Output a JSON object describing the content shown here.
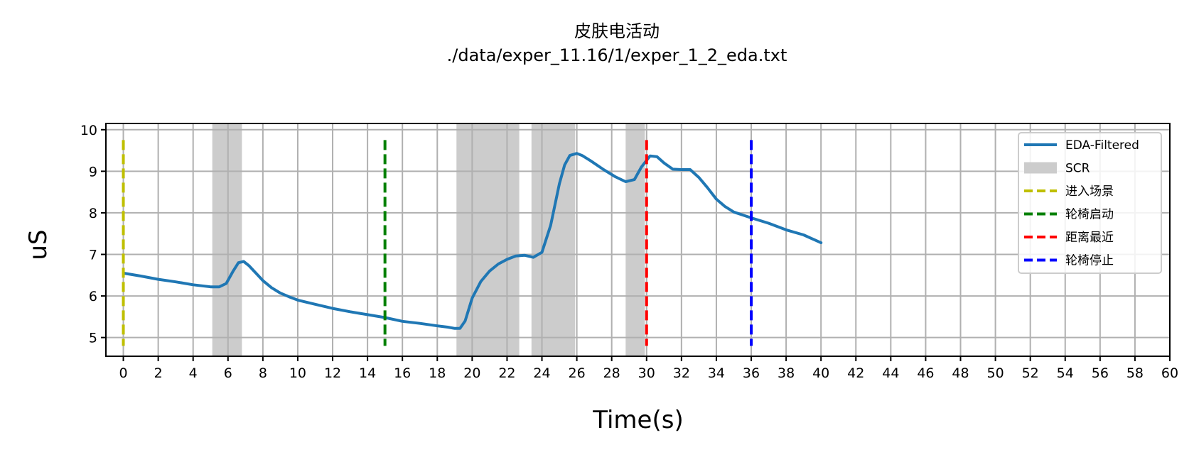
{
  "chart_data": {
    "type": "line",
    "title": "皮肤电活动",
    "subtitle": "./data/exper_11.16/1/exper_1_2_eda.txt",
    "xlabel": "Time(s)",
    "ylabel": "uS",
    "xlim": [
      -1,
      60
    ],
    "ylim": [
      4.55,
      10.15
    ],
    "xticks": [
      0,
      2,
      4,
      6,
      8,
      10,
      12,
      14,
      16,
      18,
      20,
      22,
      24,
      26,
      28,
      30,
      32,
      34,
      36,
      38,
      40,
      42,
      44,
      46,
      48,
      50,
      52,
      54,
      56,
      58,
      60
    ],
    "yticks": [
      5,
      6,
      7,
      8,
      9,
      10
    ],
    "grid": true,
    "legend_position": "top-right",
    "series": [
      {
        "name": "EDA-Filtered",
        "color": "#1f77b4",
        "x": [
          0,
          1,
          2,
          3,
          4,
          5,
          5.5,
          5.9,
          6.3,
          6.6,
          6.9,
          7.2,
          7.6,
          8,
          8.5,
          9,
          9.5,
          10,
          11,
          12,
          13,
          14,
          15,
          16,
          17,
          18,
          18.6,
          19,
          19.3,
          19.6,
          20,
          20.5,
          21,
          21.5,
          22,
          22.5,
          23,
          23.5,
          24,
          24.5,
          25,
          25.3,
          25.6,
          26,
          26.3,
          26.8,
          27.5,
          28.2,
          28.8,
          29.3,
          29.7,
          30.2,
          30.6,
          31,
          31.5,
          32,
          32.5,
          33,
          33.5,
          34,
          34.5,
          35,
          35.5,
          36,
          37,
          38,
          39,
          40
        ],
        "y": [
          6.55,
          6.48,
          6.4,
          6.34,
          6.27,
          6.22,
          6.22,
          6.3,
          6.6,
          6.8,
          6.83,
          6.73,
          6.55,
          6.37,
          6.2,
          6.07,
          5.98,
          5.9,
          5.8,
          5.7,
          5.62,
          5.55,
          5.48,
          5.39,
          5.34,
          5.28,
          5.25,
          5.22,
          5.22,
          5.4,
          5.95,
          6.35,
          6.6,
          6.77,
          6.88,
          6.96,
          6.98,
          6.93,
          7.05,
          7.7,
          8.7,
          9.15,
          9.38,
          9.43,
          9.38,
          9.25,
          9.05,
          8.87,
          8.75,
          8.8,
          9.1,
          9.37,
          9.35,
          9.2,
          9.05,
          9.04,
          9.04,
          8.85,
          8.6,
          8.33,
          8.15,
          8.02,
          7.95,
          7.88,
          7.75,
          7.59,
          7.47,
          7.28
        ]
      }
    ],
    "scr_label": "SCR",
    "scr_color": "#cccccc",
    "scr_regions": [
      [
        5.1,
        6.8
      ],
      [
        19.1,
        22.7
      ],
      [
        23.4,
        25.9
      ],
      [
        28.8,
        29.9
      ]
    ],
    "events": [
      {
        "label": "进入场景",
        "x": 0,
        "color": "#bfbf00"
      },
      {
        "label": "轮椅启动",
        "x": 15,
        "color": "#008000"
      },
      {
        "label": "距离最近",
        "x": 30,
        "color": "#ff0000"
      },
      {
        "label": "轮椅停止",
        "x": 36,
        "color": "#0000ff"
      }
    ],
    "event_ymin": 4.8,
    "event_ymax": 9.75
  }
}
